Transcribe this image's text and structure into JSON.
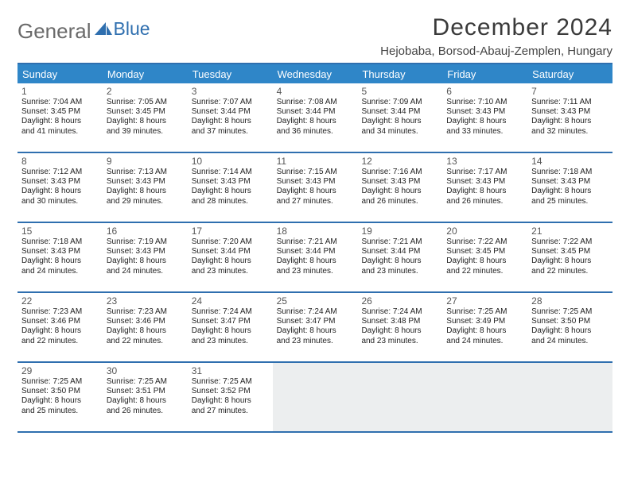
{
  "logo": {
    "word1": "General",
    "word2": "Blue"
  },
  "title": "December 2024",
  "location": "Hejobaba, Borsod-Abauj-Zemplen, Hungary",
  "daynames": [
    "Sunday",
    "Monday",
    "Tuesday",
    "Wednesday",
    "Thursday",
    "Friday",
    "Saturday"
  ],
  "colors": {
    "header_bar": "#2f86c8",
    "border": "#2f6faf",
    "blank_bg": "#eceeef",
    "logo_gray": "#6a6a6a",
    "logo_blue": "#2f6faf",
    "title_gray": "#3a3a3a"
  },
  "weeks": [
    [
      {
        "n": "1",
        "sr": "Sunrise: 7:04 AM",
        "ss": "Sunset: 3:45 PM",
        "d1": "Daylight: 8 hours",
        "d2": "and 41 minutes."
      },
      {
        "n": "2",
        "sr": "Sunrise: 7:05 AM",
        "ss": "Sunset: 3:45 PM",
        "d1": "Daylight: 8 hours",
        "d2": "and 39 minutes."
      },
      {
        "n": "3",
        "sr": "Sunrise: 7:07 AM",
        "ss": "Sunset: 3:44 PM",
        "d1": "Daylight: 8 hours",
        "d2": "and 37 minutes."
      },
      {
        "n": "4",
        "sr": "Sunrise: 7:08 AM",
        "ss": "Sunset: 3:44 PM",
        "d1": "Daylight: 8 hours",
        "d2": "and 36 minutes."
      },
      {
        "n": "5",
        "sr": "Sunrise: 7:09 AM",
        "ss": "Sunset: 3:44 PM",
        "d1": "Daylight: 8 hours",
        "d2": "and 34 minutes."
      },
      {
        "n": "6",
        "sr": "Sunrise: 7:10 AM",
        "ss": "Sunset: 3:43 PM",
        "d1": "Daylight: 8 hours",
        "d2": "and 33 minutes."
      },
      {
        "n": "7",
        "sr": "Sunrise: 7:11 AM",
        "ss": "Sunset: 3:43 PM",
        "d1": "Daylight: 8 hours",
        "d2": "and 32 minutes."
      }
    ],
    [
      {
        "n": "8",
        "sr": "Sunrise: 7:12 AM",
        "ss": "Sunset: 3:43 PM",
        "d1": "Daylight: 8 hours",
        "d2": "and 30 minutes."
      },
      {
        "n": "9",
        "sr": "Sunrise: 7:13 AM",
        "ss": "Sunset: 3:43 PM",
        "d1": "Daylight: 8 hours",
        "d2": "and 29 minutes."
      },
      {
        "n": "10",
        "sr": "Sunrise: 7:14 AM",
        "ss": "Sunset: 3:43 PM",
        "d1": "Daylight: 8 hours",
        "d2": "and 28 minutes."
      },
      {
        "n": "11",
        "sr": "Sunrise: 7:15 AM",
        "ss": "Sunset: 3:43 PM",
        "d1": "Daylight: 8 hours",
        "d2": "and 27 minutes."
      },
      {
        "n": "12",
        "sr": "Sunrise: 7:16 AM",
        "ss": "Sunset: 3:43 PM",
        "d1": "Daylight: 8 hours",
        "d2": "and 26 minutes."
      },
      {
        "n": "13",
        "sr": "Sunrise: 7:17 AM",
        "ss": "Sunset: 3:43 PM",
        "d1": "Daylight: 8 hours",
        "d2": "and 26 minutes."
      },
      {
        "n": "14",
        "sr": "Sunrise: 7:18 AM",
        "ss": "Sunset: 3:43 PM",
        "d1": "Daylight: 8 hours",
        "d2": "and 25 minutes."
      }
    ],
    [
      {
        "n": "15",
        "sr": "Sunrise: 7:18 AM",
        "ss": "Sunset: 3:43 PM",
        "d1": "Daylight: 8 hours",
        "d2": "and 24 minutes."
      },
      {
        "n": "16",
        "sr": "Sunrise: 7:19 AM",
        "ss": "Sunset: 3:43 PM",
        "d1": "Daylight: 8 hours",
        "d2": "and 24 minutes."
      },
      {
        "n": "17",
        "sr": "Sunrise: 7:20 AM",
        "ss": "Sunset: 3:44 PM",
        "d1": "Daylight: 8 hours",
        "d2": "and 23 minutes."
      },
      {
        "n": "18",
        "sr": "Sunrise: 7:21 AM",
        "ss": "Sunset: 3:44 PM",
        "d1": "Daylight: 8 hours",
        "d2": "and 23 minutes."
      },
      {
        "n": "19",
        "sr": "Sunrise: 7:21 AM",
        "ss": "Sunset: 3:44 PM",
        "d1": "Daylight: 8 hours",
        "d2": "and 23 minutes."
      },
      {
        "n": "20",
        "sr": "Sunrise: 7:22 AM",
        "ss": "Sunset: 3:45 PM",
        "d1": "Daylight: 8 hours",
        "d2": "and 22 minutes."
      },
      {
        "n": "21",
        "sr": "Sunrise: 7:22 AM",
        "ss": "Sunset: 3:45 PM",
        "d1": "Daylight: 8 hours",
        "d2": "and 22 minutes."
      }
    ],
    [
      {
        "n": "22",
        "sr": "Sunrise: 7:23 AM",
        "ss": "Sunset: 3:46 PM",
        "d1": "Daylight: 8 hours",
        "d2": "and 22 minutes."
      },
      {
        "n": "23",
        "sr": "Sunrise: 7:23 AM",
        "ss": "Sunset: 3:46 PM",
        "d1": "Daylight: 8 hours",
        "d2": "and 22 minutes."
      },
      {
        "n": "24",
        "sr": "Sunrise: 7:24 AM",
        "ss": "Sunset: 3:47 PM",
        "d1": "Daylight: 8 hours",
        "d2": "and 23 minutes."
      },
      {
        "n": "25",
        "sr": "Sunrise: 7:24 AM",
        "ss": "Sunset: 3:47 PM",
        "d1": "Daylight: 8 hours",
        "d2": "and 23 minutes."
      },
      {
        "n": "26",
        "sr": "Sunrise: 7:24 AM",
        "ss": "Sunset: 3:48 PM",
        "d1": "Daylight: 8 hours",
        "d2": "and 23 minutes."
      },
      {
        "n": "27",
        "sr": "Sunrise: 7:25 AM",
        "ss": "Sunset: 3:49 PM",
        "d1": "Daylight: 8 hours",
        "d2": "and 24 minutes."
      },
      {
        "n": "28",
        "sr": "Sunrise: 7:25 AM",
        "ss": "Sunset: 3:50 PM",
        "d1": "Daylight: 8 hours",
        "d2": "and 24 minutes."
      }
    ],
    [
      {
        "n": "29",
        "sr": "Sunrise: 7:25 AM",
        "ss": "Sunset: 3:50 PM",
        "d1": "Daylight: 8 hours",
        "d2": "and 25 minutes."
      },
      {
        "n": "30",
        "sr": "Sunrise: 7:25 AM",
        "ss": "Sunset: 3:51 PM",
        "d1": "Daylight: 8 hours",
        "d2": "and 26 minutes."
      },
      {
        "n": "31",
        "sr": "Sunrise: 7:25 AM",
        "ss": "Sunset: 3:52 PM",
        "d1": "Daylight: 8 hours",
        "d2": "and 27 minutes."
      },
      {
        "blank": true
      },
      {
        "blank": true
      },
      {
        "blank": true
      },
      {
        "blank": true
      }
    ]
  ]
}
